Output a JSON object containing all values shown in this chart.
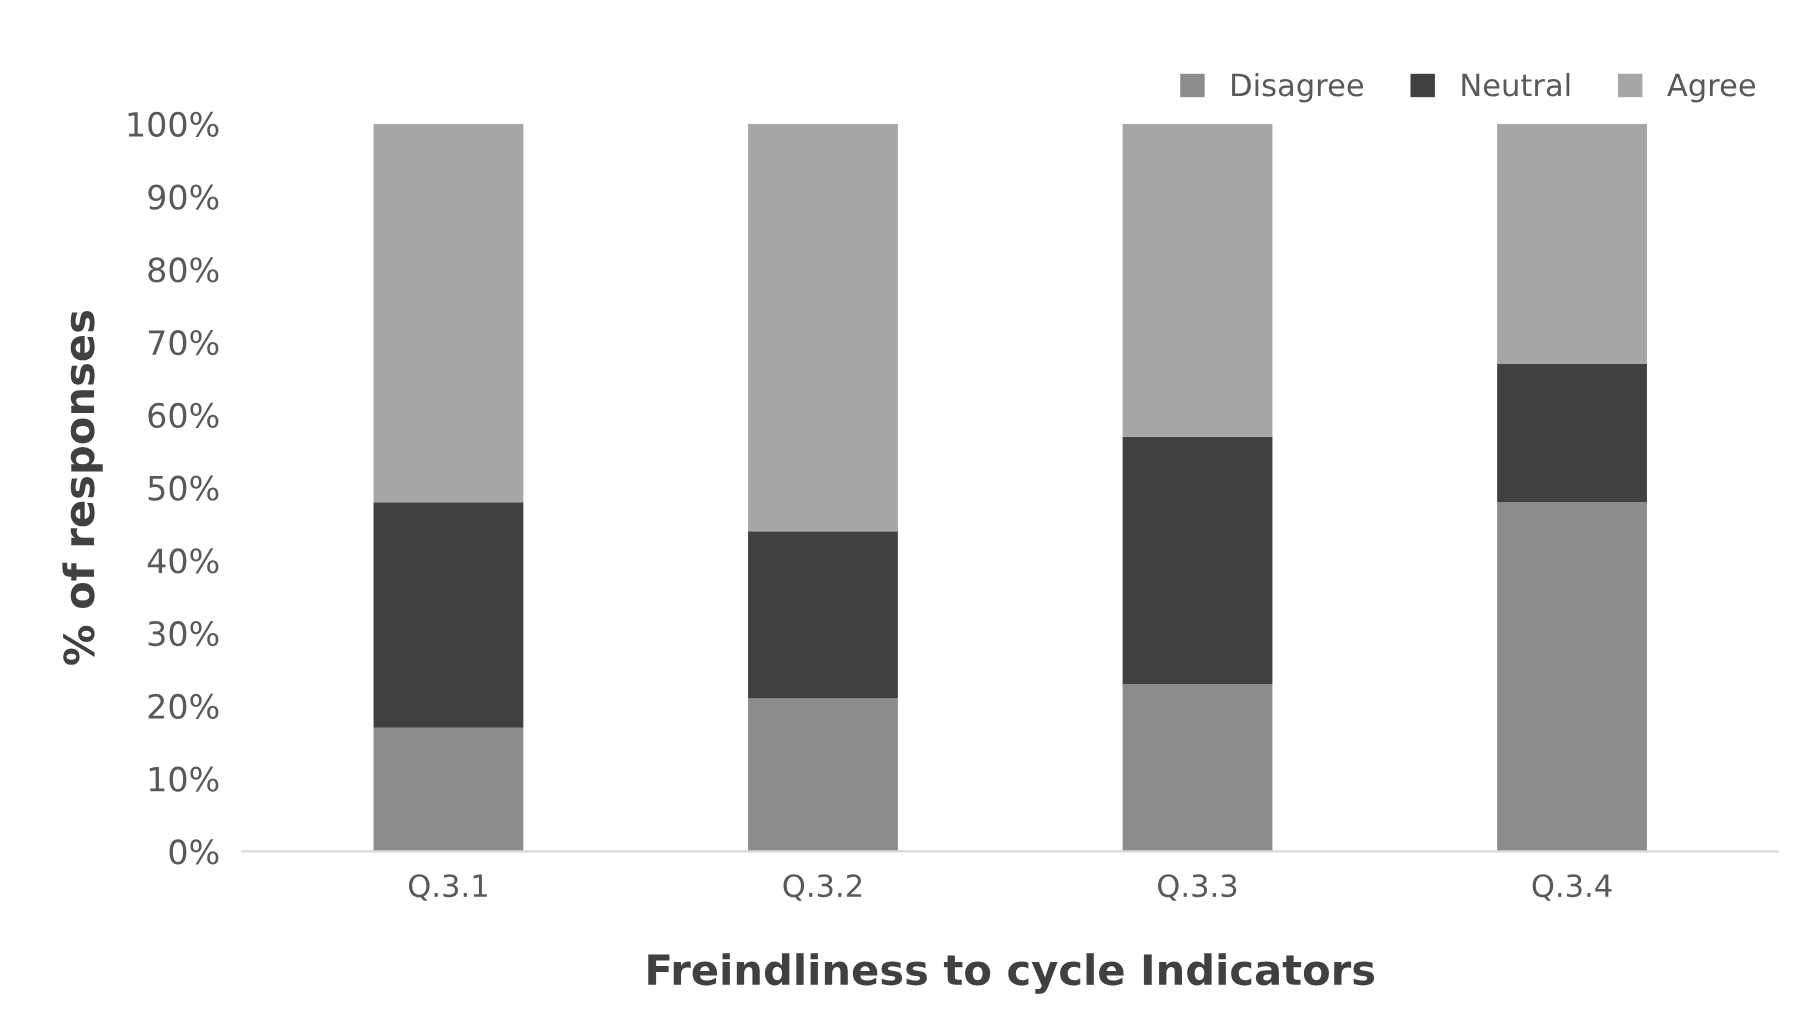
{
  "chart_data": {
    "type": "bar",
    "stacked": true,
    "categories": [
      "Q.3.1",
      "Q.3.2",
      "Q.3.3",
      "Q.3.4"
    ],
    "series": [
      {
        "name": "Disagree",
        "color": "#8c8c8c",
        "values": [
          17,
          21,
          23,
          48
        ]
      },
      {
        "name": "Neutral",
        "color": "#404040",
        "values": [
          31,
          23,
          34,
          19
        ]
      },
      {
        "name": "Agree",
        "color": "#a6a6a6",
        "values": [
          52,
          56,
          43,
          33
        ]
      }
    ],
    "xlabel": "Freindliness to cycle Indicators",
    "ylabel": "% of responses",
    "ylim": [
      0,
      100
    ],
    "yticks": [
      {
        "value": 0,
        "label": "0%"
      },
      {
        "value": 10,
        "label": "10%"
      },
      {
        "value": 20,
        "label": "20%"
      },
      {
        "value": 30,
        "label": "30%"
      },
      {
        "value": 40,
        "label": "40%"
      },
      {
        "value": 50,
        "label": "50%"
      },
      {
        "value": 60,
        "label": "60%"
      },
      {
        "value": 70,
        "label": "70%"
      },
      {
        "value": 80,
        "label": "80%"
      },
      {
        "value": 90,
        "label": "90%"
      },
      {
        "value": 100,
        "label": "100%"
      }
    ],
    "grid": false,
    "legend": "top right"
  }
}
